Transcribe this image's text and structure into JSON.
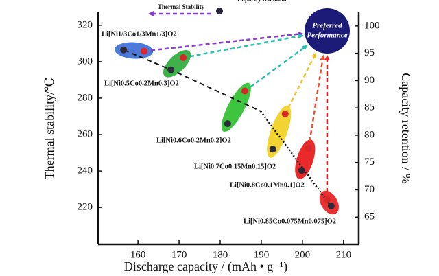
{
  "chart_data": {
    "type": "scatter",
    "x_label": "Discharge capacity / (mAh • g⁻¹)",
    "y_label": "Thermal stability/℃",
    "y2_label": "Capacity retention / %",
    "xlim": [
      150.3,
      213.7
    ],
    "xticks": [
      160,
      170,
      180,
      190,
      200,
      210
    ],
    "ylim": [
      199.7,
      327.1
    ],
    "yticks": [
      220,
      240,
      260,
      280,
      300,
      320
    ],
    "y2lim": [
      60,
      102.5
    ],
    "y2ticks": [
      65,
      70,
      75,
      80,
      85,
      90,
      95,
      100
    ],
    "series": [
      {
        "name": "Thermal Stability",
        "color": "#2b2b3a",
        "x": [
          156.5,
          168,
          181.8,
          192.8,
          199.8,
          207
        ],
        "values": [
          306.5,
          295.6,
          266,
          252,
          240.3,
          220.8
        ]
      },
      {
        "name": "Capacity retention",
        "color": "#d8262a",
        "axis": "y2",
        "x": [
          161.5,
          171,
          186,
          195.8,
          201.5,
          206
        ],
        "values": [
          95.4,
          94.2,
          88.1,
          83.9,
          77.6,
          68.3
        ]
      }
    ],
    "point_labels": [
      "Li[Ni1/3Co1/3Mn1/3]O2",
      "Li[Ni0.5Co0.2Mn0.3]O2",
      "Li[Ni0.6Co0.2Mn0.2]O2",
      "Li[Ni0.7Co0.15Mn0.15]O2",
      "Li[Ni0.8Co0.1Mn0.1]O2",
      "Li[Ni0.85Co0.075Mn0.075]O2"
    ],
    "ellipse_colors": [
      "#3d6fd8",
      "#2eaa3c",
      "#2fbf2f",
      "#f0d020",
      "#e81818",
      "#e82020"
    ],
    "arrow_colors": [
      "#8a3bd0",
      "#2cc0b0",
      "#2cc0b0",
      "#f0c030",
      "#e85030",
      "#e02020"
    ],
    "annotation": [
      "Preferred",
      "Performance"
    ]
  }
}
